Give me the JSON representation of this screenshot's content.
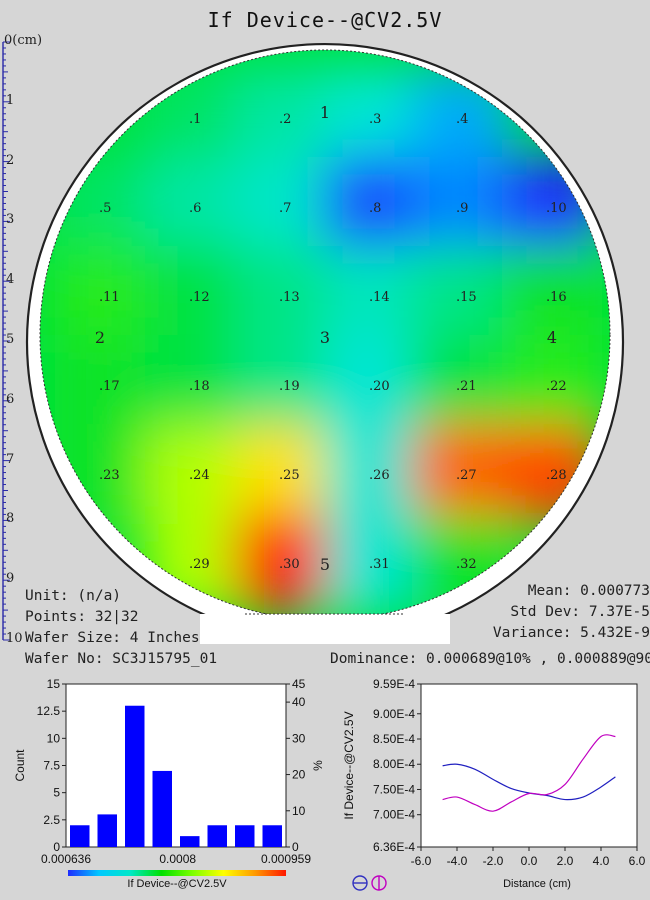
{
  "title": "If Device--@CV2.5V",
  "ruler": {
    "ticks": [
      "0(cm)",
      "1",
      "2",
      "3",
      "4",
      "5",
      "6",
      "7",
      "8",
      "9",
      "10"
    ]
  },
  "wafer": {
    "sites": [
      {
        "id": ".1",
        "value": 0.00078
      },
      {
        "id": ".2",
        "value": 0.00076
      },
      {
        "id": ".3",
        "value": 0.00074
      },
      {
        "id": ".4",
        "value": 0.0007
      },
      {
        "id": ".5",
        "value": 0.00078
      },
      {
        "id": ".6",
        "value": 0.00076
      },
      {
        "id": ".7",
        "value": 0.000745
      },
      {
        "id": ".8",
        "value": 0.00065
      },
      {
        "id": ".9",
        "value": 0.00068
      },
      {
        "id": ".10",
        "value": 0.000636
      },
      {
        "id": ".11",
        "value": 0.00081
      },
      {
        "id": ".12",
        "value": 0.00079
      },
      {
        "id": ".13",
        "value": 0.00077
      },
      {
        "id": ".14",
        "value": 0.00075
      },
      {
        "id": ".15",
        "value": 0.00077
      },
      {
        "id": ".16",
        "value": 0.0008
      },
      {
        "id": ".17",
        "value": 0.0008
      },
      {
        "id": ".18",
        "value": 0.00079
      },
      {
        "id": ".19",
        "value": 0.00077
      },
      {
        "id": ".20",
        "value": 0.00074
      },
      {
        "id": ".21",
        "value": 0.00079
      },
      {
        "id": ".22",
        "value": 0.00081
      },
      {
        "id": ".23",
        "value": 0.0008
      },
      {
        "id": ".24",
        "value": 0.00085
      },
      {
        "id": ".25",
        "value": 0.00088
      },
      {
        "id": ".26",
        "value": 0.00074
      },
      {
        "id": ".27",
        "value": 0.00093
      },
      {
        "id": ".28",
        "value": 0.00094
      },
      {
        "id": ".29",
        "value": 0.00085
      },
      {
        "id": ".30",
        "value": 0.000959
      },
      {
        "id": ".31",
        "value": 0.00074
      },
      {
        "id": ".32",
        "value": 0.0008
      }
    ],
    "region_labels": [
      "1",
      "2",
      "3",
      "4",
      "5"
    ]
  },
  "info": {
    "unit": "Unit: (n/a)",
    "points": "Points: 32|32",
    "wafer_size": "Wafer Size: 4 Inches",
    "wafer_no": "Wafer No: SC3J15795_01",
    "mean": "Mean: 0.000773",
    "std_dev": "Std Dev: 7.37E-5",
    "variance": "Variance: 5.432E-9",
    "dominance": "Dominance: 0.000689@10% , 0.000889@90"
  },
  "chart_data": [
    {
      "type": "bar",
      "title": "",
      "xlabel": "If Device--@CV2.5V",
      "ylabel": "Count",
      "y2label": "%",
      "x_ticks": [
        "0.000636",
        "0.0008",
        "0.000959"
      ],
      "y_ticks": [
        "0",
        "2.5",
        "5",
        "7.5",
        "10",
        "12.5",
        "15"
      ],
      "y2_ticks": [
        "0",
        "10",
        "20",
        "30",
        "40",
        "45"
      ],
      "ylim": [
        0,
        15
      ],
      "y2lim": [
        0,
        45
      ],
      "xlim": [
        0.000636,
        0.000959
      ],
      "bin_count": 8,
      "values": [
        2,
        3,
        13,
        7,
        1,
        2,
        2,
        2
      ],
      "bar_color": "#0000ff",
      "colorbar": [
        "#1e2cff",
        "#00c8ff",
        "#00e8c8",
        "#00e000",
        "#7cff00",
        "#ffff00",
        "#ff9a00",
        "#ff1800"
      ]
    },
    {
      "type": "line",
      "title": "",
      "xlabel": "Distance (cm)",
      "ylabel": "If Device--@CV2.5V",
      "x_ticks": [
        "-6.0",
        "-4.0",
        "-2.0",
        "0.0",
        "2.0",
        "4.0",
        "6.0"
      ],
      "y_ticks": [
        "6.36E-4",
        "7.00E-4",
        "7.50E-4",
        "8.00E-4",
        "8.50E-4",
        "9.00E-4",
        "9.59E-4"
      ],
      "xlim": [
        -6,
        6
      ],
      "ylim": [
        0.000636,
        0.000959
      ],
      "series": [
        {
          "color": "#2020c0",
          "x": [
            -4.8,
            -4,
            -3,
            -2,
            -1,
            0,
            1,
            2,
            3,
            4,
            4.8
          ],
          "y": [
            0.000797,
            0.0008,
            0.00079,
            0.00077,
            0.000752,
            0.000743,
            0.000738,
            0.00073,
            0.000735,
            0.000755,
            0.000775
          ]
        },
        {
          "color": "#c000c0",
          "x": [
            -4.8,
            -4,
            -3,
            -2,
            -1,
            0,
            1,
            2,
            3,
            4,
            4.8
          ],
          "y": [
            0.00073,
            0.000735,
            0.00072,
            0.000707,
            0.000725,
            0.000742,
            0.00074,
            0.00076,
            0.00081,
            0.000855,
            0.000855
          ]
        }
      ]
    }
  ]
}
